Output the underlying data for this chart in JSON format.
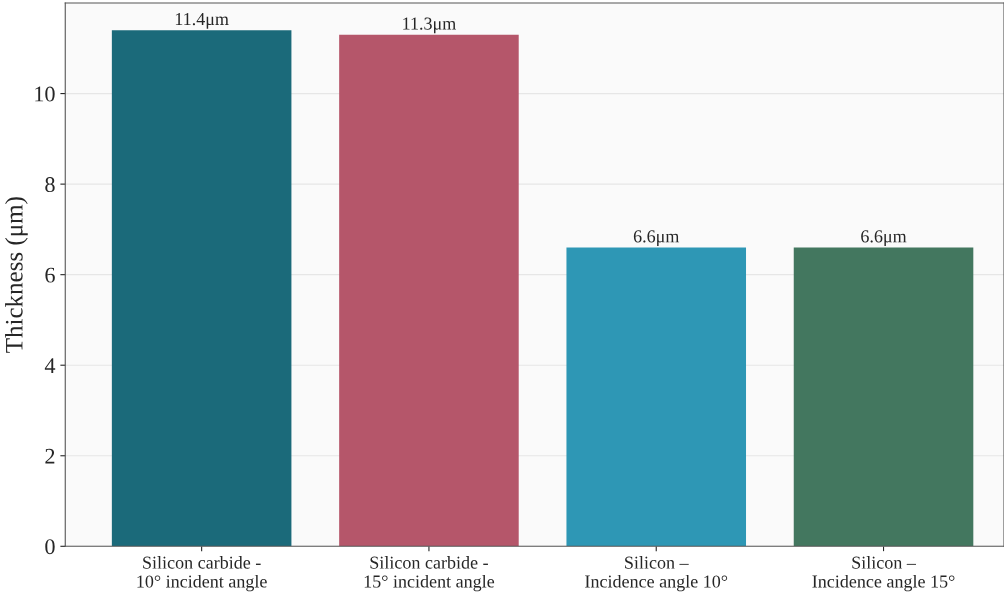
{
  "chart_data": {
    "type": "bar",
    "categories": [
      "Silicon carbide -\n10° incident angle",
      "Silicon carbide -\n15° incident angle",
      "Silicon –\nIncidence angle 10°",
      "Silicon –\nIncidence angle 15°"
    ],
    "values": [
      11.4,
      11.3,
      6.6,
      6.6
    ],
    "colors": [
      "#1b6a7a",
      "#b5566a",
      "#2e97b5",
      "#43775f"
    ],
    "value_labels": [
      "11.4μm",
      "11.3μm",
      "6.6μm",
      "6.6μm"
    ],
    "ylabel": "Thickness (μm)",
    "ylim": [
      0,
      12
    ],
    "yticks": [
      0,
      2,
      4,
      6,
      8,
      10
    ],
    "grid": "y"
  }
}
